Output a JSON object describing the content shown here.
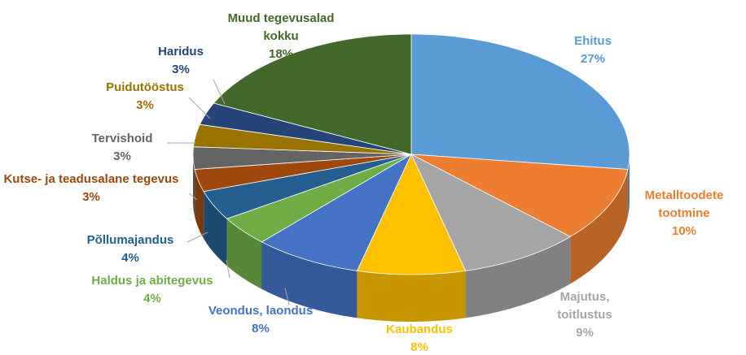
{
  "chart_data": {
    "type": "pie",
    "categories": [
      "Ehitus",
      "Metalltoodete tootmine",
      "Majutus, toitlustus",
      "Kaubandus",
      "Veondus, laondus",
      "Haldus ja abitegevus",
      "Põllumajandus",
      "Kutse- ja teadusalane tegevus",
      "Tervishoid",
      "Puidutööstus",
      "Haridus",
      "Muud tegevusalad kokku"
    ],
    "values": [
      27,
      10,
      9,
      8,
      8,
      4,
      4,
      3,
      3,
      3,
      3,
      18
    ],
    "value_labels": [
      "27%",
      "10%",
      "9%",
      "8%",
      "8%",
      "4%",
      "4%",
      "3%",
      "3%",
      "3%",
      "3%",
      "18%"
    ],
    "colors": [
      "#5b9bd5",
      "#ed7d31",
      "#a5a5a5",
      "#ffc000",
      "#4472c4",
      "#70ad47",
      "#255e91",
      "#9e480e",
      "#636363",
      "#997300",
      "#264478",
      "#43682b"
    ]
  }
}
